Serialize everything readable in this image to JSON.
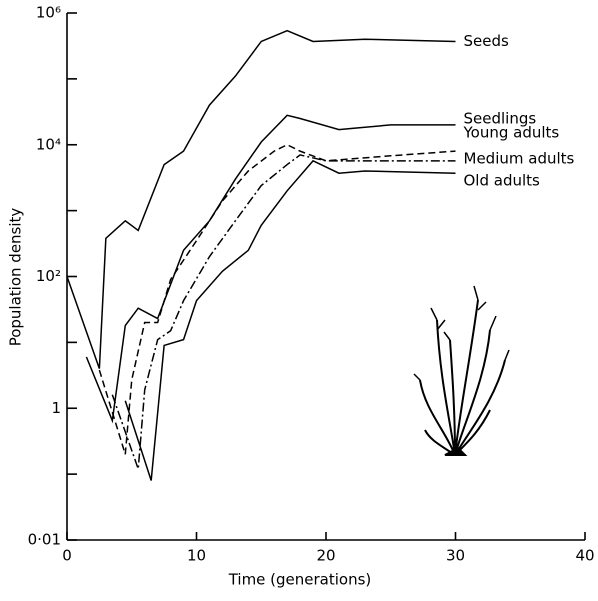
{
  "chart_data": {
    "type": "line",
    "x_label": "Time (generations)",
    "y_label": "Population density",
    "xlim": [
      0,
      40
    ],
    "xticks": [
      0,
      10,
      20,
      30,
      40
    ],
    "ylim": [
      0.01,
      1000000
    ],
    "log_y": true,
    "yticks": [
      {
        "value": 0.01,
        "label": "0·01"
      },
      1,
      {
        "value": 100,
        "label": "10²"
      },
      {
        "value": 10000,
        "label": "10⁴"
      },
      {
        "value": 1000000,
        "label": "10⁶"
      }
    ],
    "yminorticks": [
      0.1,
      10,
      1000,
      100000
    ],
    "series": [
      {
        "name": "Seeds",
        "color": "#000000",
        "dash": "solid",
        "x": [
          0,
          2.5,
          3,
          4.5,
          5.5,
          7.5,
          9,
          11,
          13,
          15,
          17,
          19,
          23,
          30
        ],
        "values": [
          100,
          4,
          380,
          700,
          500,
          5000,
          8000,
          40000,
          110000,
          370000,
          540000,
          370000,
          400000,
          370000
        ]
      },
      {
        "name": "Seedlings",
        "color": "#000000",
        "dash": "solid",
        "x": [
          1.5,
          3.5,
          4.5,
          5.5,
          7,
          9,
          11,
          13,
          15,
          17,
          18,
          21,
          25,
          30
        ],
        "values": [
          6,
          0.65,
          18,
          33,
          23,
          250,
          700,
          3000,
          11000,
          28000,
          25000,
          17000,
          20000,
          20000
        ]
      },
      {
        "name": "Young adults",
        "color": "#000000",
        "dash": "dashed",
        "x": [
          2.5,
          4.5,
          5,
          6,
          7,
          8,
          10,
          12,
          14,
          16,
          17,
          18,
          20,
          25,
          30
        ],
        "values": [
          3.8,
          0.2,
          2.7,
          20,
          20,
          90,
          350,
          1400,
          4000,
          8000,
          10000,
          8000,
          5700,
          6800,
          8000
        ]
      },
      {
        "name": "Medium adults",
        "color": "#000000",
        "dash": "dashdot",
        "x": [
          3.5,
          5.5,
          6,
          7,
          8,
          9,
          11,
          13,
          15,
          17,
          18,
          20,
          25,
          30
        ],
        "values": [
          1.6,
          0.12,
          1.9,
          11,
          15,
          43,
          200,
          700,
          2400,
          5000,
          7000,
          5700,
          5700,
          5700
        ]
      },
      {
        "name": "Old adults",
        "color": "#000000",
        "dash": "solid",
        "x": [
          4.5,
          6.5,
          7.5,
          9,
          10,
          12,
          14,
          15,
          17,
          19,
          21,
          23,
          30
        ],
        "values": [
          1.3,
          0.08,
          9,
          11,
          43,
          120,
          250,
          600,
          2000,
          5700,
          3700,
          4000,
          3700
        ]
      }
    ]
  }
}
